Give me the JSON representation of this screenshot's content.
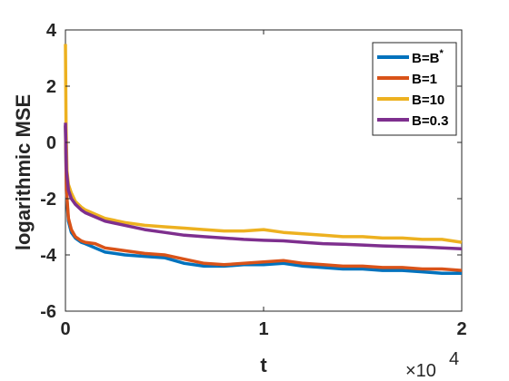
{
  "chart_data": {
    "type": "line",
    "title": "",
    "xlabel": "t",
    "ylabel": "logarithmic MSE",
    "xlim": [
      0,
      20000
    ],
    "ylim": [
      -6,
      4
    ],
    "x_ticks": [
      0,
      10000,
      20000
    ],
    "x_tick_labels": [
      "0",
      "1",
      "2"
    ],
    "x_exponent_label": "×10",
    "x_exponent_power": "4",
    "y_ticks": [
      -6,
      -4,
      -2,
      0,
      2,
      4
    ],
    "y_tick_labels": [
      "-6",
      "-4",
      "-2",
      "0",
      "2",
      "4"
    ],
    "grid": false,
    "legend_position": "top-right",
    "series": [
      {
        "name": "B=B",
        "name_sup": "*",
        "color": "#0072BD",
        "x": [
          0,
          50,
          150,
          300,
          500,
          800,
          1000,
          1500,
          2000,
          3000,
          4000,
          5000,
          6000,
          7000,
          8000,
          9000,
          10000,
          11000,
          12000,
          13000,
          14000,
          15000,
          16000,
          17000,
          18000,
          19000,
          20000
        ],
        "y": [
          0.6,
          -1.8,
          -2.8,
          -3.2,
          -3.4,
          -3.55,
          -3.6,
          -3.75,
          -3.9,
          -4.0,
          -4.05,
          -4.1,
          -4.3,
          -4.4,
          -4.4,
          -4.35,
          -4.35,
          -4.3,
          -4.4,
          -4.45,
          -4.5,
          -4.5,
          -4.55,
          -4.55,
          -4.6,
          -4.65,
          -4.65
        ]
      },
      {
        "name": "B=1",
        "color": "#D95319",
        "x": [
          0,
          50,
          150,
          300,
          500,
          800,
          1000,
          1500,
          2000,
          3000,
          4000,
          5000,
          6000,
          7000,
          8000,
          9000,
          10000,
          11000,
          12000,
          13000,
          14000,
          15000,
          16000,
          17000,
          18000,
          19000,
          20000
        ],
        "y": [
          0.6,
          -1.7,
          -2.7,
          -3.1,
          -3.35,
          -3.5,
          -3.55,
          -3.6,
          -3.75,
          -3.85,
          -3.95,
          -4.0,
          -4.15,
          -4.3,
          -4.35,
          -4.3,
          -4.25,
          -4.2,
          -4.3,
          -4.35,
          -4.4,
          -4.4,
          -4.45,
          -4.45,
          -4.5,
          -4.5,
          -4.55
        ]
      },
      {
        "name": "B=10",
        "color": "#EDB120",
        "x": [
          0,
          30,
          80,
          150,
          300,
          500,
          800,
          1000,
          1500,
          2000,
          3000,
          4000,
          5000,
          6000,
          7000,
          8000,
          9000,
          10000,
          11000,
          12000,
          13000,
          14000,
          15000,
          16000,
          17000,
          18000,
          19000,
          20000
        ],
        "y": [
          3.5,
          0.5,
          -1.0,
          -1.5,
          -1.8,
          -2.1,
          -2.3,
          -2.4,
          -2.55,
          -2.7,
          -2.85,
          -2.95,
          -3.0,
          -3.05,
          -3.1,
          -3.15,
          -3.15,
          -3.1,
          -3.2,
          -3.25,
          -3.3,
          -3.35,
          -3.35,
          -3.4,
          -3.4,
          -3.45,
          -3.45,
          -3.55
        ]
      },
      {
        "name": "B=0.3",
        "color": "#7E2F8E",
        "x": [
          0,
          50,
          150,
          300,
          500,
          800,
          1000,
          1500,
          2000,
          3000,
          4000,
          5000,
          6000,
          7000,
          8000,
          9000,
          10000,
          11000,
          12000,
          13000,
          14000,
          15000,
          16000,
          17000,
          18000,
          19000,
          20000
        ],
        "y": [
          0.7,
          -1.0,
          -1.7,
          -2.0,
          -2.2,
          -2.4,
          -2.5,
          -2.65,
          -2.8,
          -2.95,
          -3.1,
          -3.2,
          -3.3,
          -3.35,
          -3.4,
          -3.45,
          -3.48,
          -3.5,
          -3.55,
          -3.6,
          -3.62,
          -3.65,
          -3.68,
          -3.7,
          -3.72,
          -3.75,
          -3.78
        ]
      }
    ]
  }
}
